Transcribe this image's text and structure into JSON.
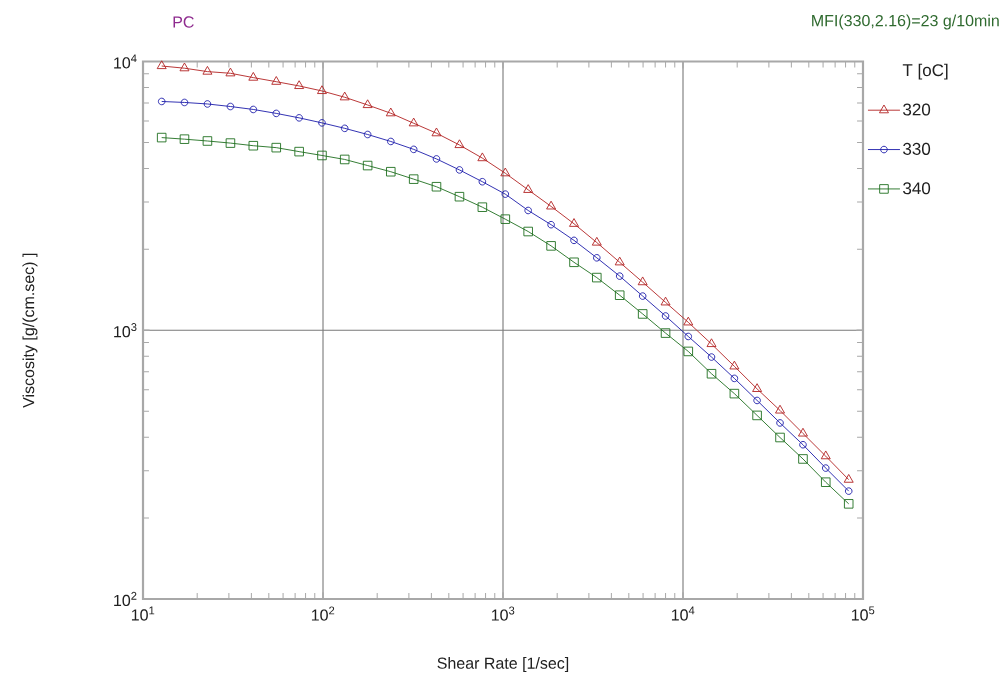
{
  "chart_data": {
    "type": "line",
    "title": "PC",
    "annotations": [
      "MFI(330,2.16)=23 g/10min"
    ],
    "xlabel": "Shear Rate [1/sec]",
    "ylabel": "Viscosity [g/(cm.sec) ]",
    "legend_title": "T [oC]",
    "x": [
      12.7,
      17.0,
      22.8,
      30.6,
      41.0,
      55.0,
      73.7,
      98.7,
      132,
      177,
      238,
      319,
      427,
      573,
      768,
      1030,
      1380,
      1850,
      2480,
      3320,
      4450,
      5970,
      8000,
      10700,
      14400,
      19300,
      25800,
      34600,
      46400,
      62100,
      83300
    ],
    "series": [
      {
        "name": "320",
        "color": "#b22222",
        "marker": "triangle",
        "values": [
          9620,
          9440,
          9170,
          9040,
          8710,
          8410,
          8110,
          7770,
          7360,
          6890,
          6420,
          5890,
          5410,
          4890,
          4370,
          3840,
          3330,
          2890,
          2490,
          2120,
          1790,
          1510,
          1270,
          1070,
          889,
          734,
          605,
          503,
          413,
          340,
          278
        ]
      },
      {
        "name": "330",
        "color": "#1c1caa",
        "marker": "circle",
        "values": [
          7100,
          7040,
          6950,
          6800,
          6630,
          6410,
          6170,
          5910,
          5640,
          5350,
          5040,
          4710,
          4340,
          3950,
          3570,
          3210,
          2790,
          2470,
          2160,
          1860,
          1590,
          1340,
          1130,
          948,
          795,
          662,
          548,
          452,
          375,
          307,
          252
        ]
      },
      {
        "name": "340",
        "color": "#1f6f1f",
        "marker": "square",
        "values": [
          5210,
          5140,
          5060,
          4970,
          4860,
          4780,
          4620,
          4470,
          4320,
          4100,
          3890,
          3650,
          3420,
          3140,
          2870,
          2590,
          2330,
          2060,
          1790,
          1570,
          1350,
          1150,
          976,
          834,
          689,
          581,
          482,
          399,
          332,
          272,
          226
        ]
      }
    ],
    "xlim": [
      10,
      100000
    ],
    "ylim": [
      100,
      10000
    ],
    "xticks": [
      {
        "value": 10,
        "label": "10$^{1}$"
      },
      {
        "value": 100,
        "label": "10$^{2}$"
      },
      {
        "value": 1000,
        "label": "10$^{3}$"
      },
      {
        "value": 10000,
        "label": "10$^{4}$"
      },
      {
        "value": 100000,
        "label": "10$^{5}$"
      }
    ],
    "yticks": [
      {
        "value": 100,
        "label": "10$^{2}$"
      },
      {
        "value": 1000,
        "label": "10$^{3}$"
      },
      {
        "value": 10000,
        "label": "10$^{4}$"
      }
    ],
    "log": "xy",
    "grid": true,
    "legend": "right"
  }
}
